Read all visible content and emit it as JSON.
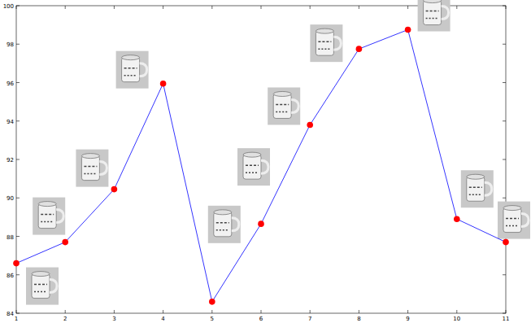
{
  "chart_data": {
    "type": "line",
    "x": [
      1,
      2,
      3,
      4,
      5,
      6,
      7,
      8,
      9,
      10,
      11
    ],
    "values": [
      86.6,
      87.7,
      90.45,
      95.95,
      84.6,
      88.65,
      93.8,
      97.75,
      98.75,
      88.9,
      87.7
    ],
    "color": "#0000ff",
    "marker": "circle",
    "xlim": [
      1,
      11
    ],
    "ylim": [
      84,
      100
    ],
    "xticks": [
      1,
      2,
      3,
      4,
      5,
      6,
      7,
      8,
      9,
      10,
      11
    ],
    "yticks": [
      84,
      86,
      88,
      90,
      92,
      94,
      96,
      98,
      100
    ],
    "grid": false
  }
}
